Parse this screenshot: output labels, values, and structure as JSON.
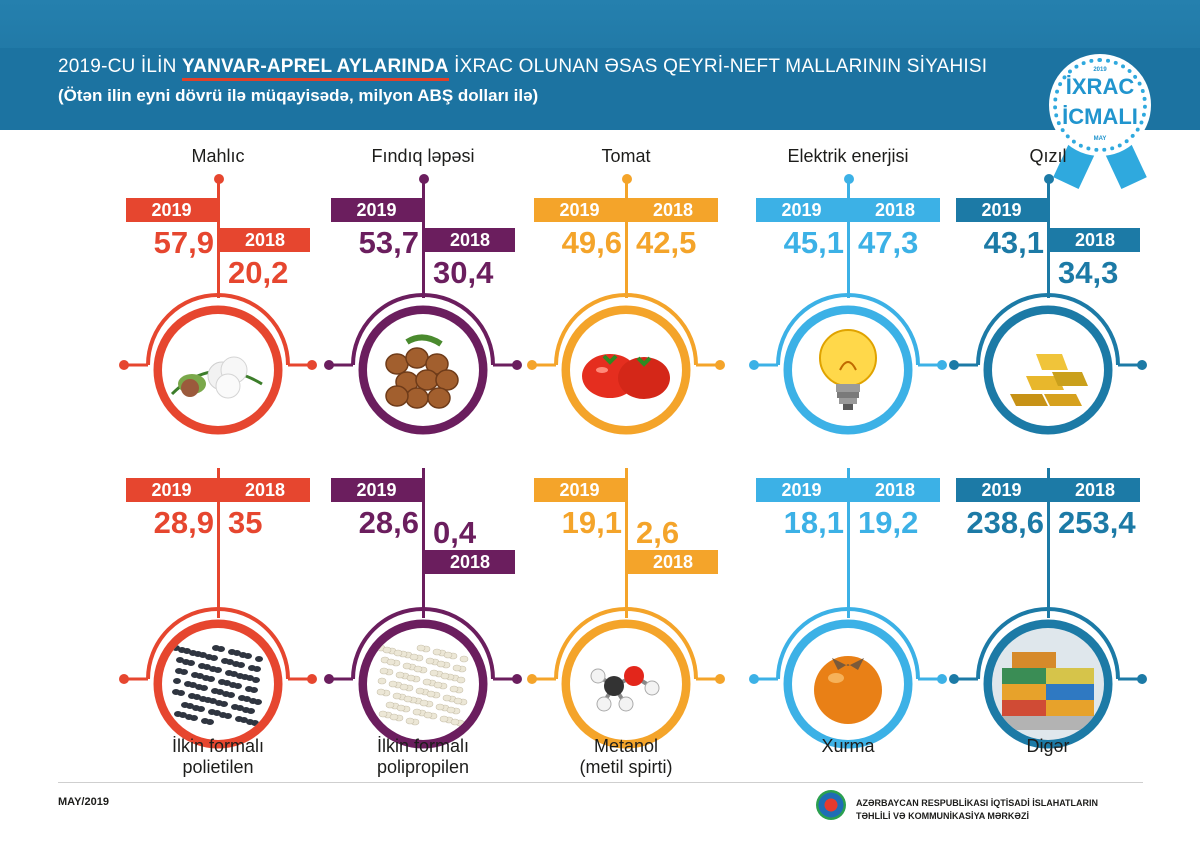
{
  "header": {
    "title_prefix": "2019-CU İLİN ",
    "title_highlight": "YANVAR-APREL AYLARINDA",
    "title_suffix": " İXRAC OLUNAN ƏSAS QEYRİ-NEFT MALLARININ SİYAHISI",
    "subtitle": "(Ötən ilin eyni dövrü ilə müqayisədə, milyon ABŞ dolları ilə)"
  },
  "badge": {
    "top_small": "2019",
    "word1": "İXRAC",
    "word2": "İCMALI",
    "bottom_small": "MAY"
  },
  "colors": {
    "red": "#e6462f",
    "purple": "#6b1e5e",
    "orange": "#f4a42a",
    "light_blue": "#3cb1e6",
    "blue": "#1c7aa6"
  },
  "top_row": [
    {
      "name": "Mahlıc",
      "year_2019": "2019",
      "value_2019": "57,9",
      "year_2018": "2018",
      "value_2018": "20,2",
      "icon": "cotton-icon"
    },
    {
      "name": "Fındıq ləpəsi",
      "year_2019": "2019",
      "value_2019": "53,7",
      "year_2018": "2018",
      "value_2018": "30,4",
      "icon": "hazelnut-icon"
    },
    {
      "name": "Tomat",
      "year_2019": "2019",
      "value_2019": "49,6",
      "year_2018": "2018",
      "value_2018": "42,5",
      "icon": "tomato-icon"
    },
    {
      "name": "Elektrik enerjisi",
      "year_2019": "2019",
      "value_2019": "45,1",
      "year_2018": "2018",
      "value_2018": "47,3",
      "icon": "light-bulb-icon"
    },
    {
      "name": "Qızıl",
      "year_2019": "2019",
      "value_2019": "43,1",
      "year_2018": "2018",
      "value_2018": "34,3",
      "icon": "gold-bars-icon"
    }
  ],
  "bottom_row": [
    {
      "caption1": "İlkin formalı",
      "caption2": "polietilen",
      "year_2019": "2019",
      "value_2019": "28,9",
      "year_2018": "2018",
      "value_2018": "35",
      "icon": "polyethylene-granules-icon"
    },
    {
      "caption1": "İlkin formalı",
      "caption2": "polipropilen",
      "year_2019": "2019",
      "value_2019": "28,6",
      "year_2018": "2018",
      "value_2018": "0,4",
      "icon": "polypropylene-granules-icon"
    },
    {
      "caption1": "Metanol",
      "caption2": "(metil spirti)",
      "year_2019": "2019",
      "value_2019": "19,1",
      "year_2018": "2018",
      "value_2018": "2,6",
      "icon": "molecule-icon"
    },
    {
      "caption1": "Xurma",
      "caption2": "",
      "year_2019": "2019",
      "value_2019": "18,1",
      "year_2018": "2018",
      "value_2018": "19,2",
      "icon": "persimmon-icon"
    },
    {
      "caption1": "Digər",
      "caption2": "",
      "year_2019": "2019",
      "value_2019": "238,6",
      "year_2018": "2018",
      "value_2018": "253,4",
      "icon": "containers-icon"
    }
  ],
  "footer": {
    "date": "MAY/2019",
    "org_line1": "AZƏRBAYCAN RESPUBLİKASI İQTİSADİ İSLAHATLARIN",
    "org_line2": "TƏHLİLİ VƏ KOMMUNİKASİYA MƏRKƏZİ"
  }
}
